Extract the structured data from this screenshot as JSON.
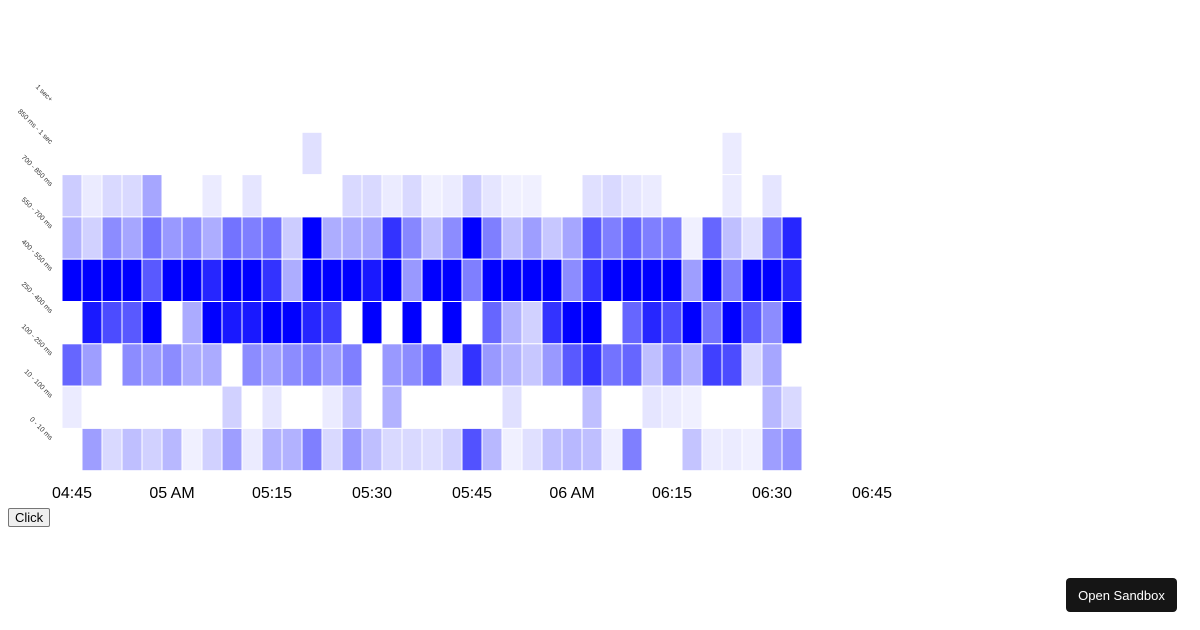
{
  "chart_data": {
    "type": "heatmap",
    "color": "#0000ff",
    "y_categories": [
      "1 sec+",
      "850 ms - 1 sec",
      "700 - 850 ms",
      "550 - 700 ms",
      "400 - 550 ms",
      "250 - 400 ms",
      "100 - 250 ms",
      "10 - 100 ms",
      "0 - 10 ms"
    ],
    "x": [
      "04:45",
      "04:48",
      "04:51",
      "04:54",
      "04:57",
      "05:00",
      "05:03",
      "05:06",
      "05:09",
      "05:12",
      "05:15",
      "05:18",
      "05:21",
      "05:24",
      "05:27",
      "05:30",
      "05:33",
      "05:36",
      "05:39",
      "05:42",
      "05:45",
      "05:48",
      "05:51",
      "05:54",
      "05:57",
      "06:00",
      "06:03",
      "06:06",
      "06:09",
      "06:12",
      "06:15",
      "06:18",
      "06:21",
      "06:24",
      "06:27",
      "06:30",
      "06:33"
    ],
    "x_tick_labels": [
      "04:45",
      "05 AM",
      "05:15",
      "05:30",
      "05:45",
      "06 AM",
      "06:15",
      "06:30",
      "06:45"
    ],
    "x_range": [
      "04:45",
      "06:45"
    ],
    "intensity": [
      [
        null,
        null,
        null,
        null,
        null,
        null,
        null,
        null,
        null,
        null,
        null,
        null,
        null,
        null,
        null,
        null,
        null,
        null,
        null,
        null,
        null,
        null,
        null,
        null,
        null,
        null,
        null,
        null,
        null,
        null,
        null,
        null,
        null,
        null,
        null,
        null,
        null
      ],
      [
        null,
        null,
        null,
        null,
        null,
        null,
        null,
        null,
        null,
        null,
        null,
        null,
        0.12,
        null,
        null,
        null,
        null,
        null,
        null,
        null,
        null,
        null,
        null,
        null,
        null,
        null,
        null,
        null,
        null,
        null,
        null,
        null,
        null,
        0.08,
        null,
        null,
        null
      ],
      [
        0.2,
        0.08,
        0.15,
        0.15,
        0.35,
        null,
        null,
        0.08,
        null,
        0.1,
        null,
        null,
        null,
        null,
        0.15,
        0.15,
        0.08,
        0.15,
        0.06,
        0.08,
        0.2,
        0.1,
        0.06,
        0.06,
        null,
        null,
        0.12,
        0.15,
        0.1,
        0.08,
        null,
        null,
        null,
        0.08,
        null,
        0.1,
        null
      ],
      [
        0.3,
        0.18,
        0.45,
        0.35,
        0.55,
        0.4,
        0.45,
        0.32,
        0.55,
        0.5,
        0.55,
        0.2,
        1,
        0.32,
        0.33,
        0.35,
        0.8,
        0.47,
        0.25,
        0.45,
        1,
        0.5,
        0.25,
        0.38,
        0.22,
        0.35,
        0.65,
        0.5,
        0.6,
        0.5,
        0.5,
        0.06,
        0.6,
        0.25,
        0.12,
        0.55,
        0.85
      ],
      [
        1,
        1,
        1,
        1,
        0.65,
        1,
        1,
        0.85,
        1,
        1,
        0.8,
        0.32,
        1,
        1,
        1,
        0.9,
        1,
        0.4,
        1,
        1,
        0.5,
        1,
        1,
        1,
        1,
        0.45,
        0.8,
        1,
        1,
        1,
        1,
        0.38,
        1,
        0.5,
        1,
        1,
        0.85
      ],
      [
        null,
        0.9,
        0.7,
        0.65,
        1,
        null,
        0.33,
        1,
        0.9,
        0.9,
        1,
        1,
        0.85,
        0.75,
        null,
        1,
        null,
        1,
        null,
        1,
        null,
        0.6,
        0.3,
        0.18,
        0.8,
        1,
        1,
        null,
        0.6,
        0.85,
        0.7,
        1,
        0.55,
        1,
        0.65,
        0.45,
        1
      ],
      [
        0.6,
        0.38,
        null,
        0.45,
        0.4,
        0.45,
        0.33,
        0.33,
        null,
        0.45,
        0.38,
        0.45,
        0.5,
        0.4,
        0.5,
        null,
        0.4,
        0.45,
        0.6,
        0.15,
        0.8,
        0.4,
        0.3,
        0.22,
        0.4,
        0.65,
        0.8,
        0.55,
        0.6,
        0.25,
        0.5,
        0.3,
        0.75,
        0.7,
        0.15,
        0.35,
        null
      ],
      [
        0.08,
        null,
        null,
        null,
        null,
        null,
        null,
        null,
        0.18,
        null,
        0.1,
        null,
        null,
        0.08,
        0.22,
        null,
        0.3,
        null,
        null,
        null,
        null,
        null,
        0.12,
        null,
        null,
        null,
        0.25,
        null,
        null,
        0.1,
        0.08,
        0.06,
        null,
        null,
        null,
        0.28,
        0.15
      ],
      [
        null,
        0.38,
        0.15,
        0.25,
        0.18,
        0.28,
        0.06,
        0.18,
        0.38,
        0.08,
        0.3,
        0.3,
        0.5,
        0.15,
        0.4,
        0.25,
        0.15,
        0.15,
        0.13,
        0.18,
        0.68,
        0.28,
        0.06,
        0.12,
        0.25,
        0.28,
        0.25,
        0.06,
        0.5,
        null,
        null,
        0.23,
        0.08,
        0.08,
        0.06,
        0.38,
        0.43
      ]
    ],
    "grid": false,
    "legend": "none"
  },
  "controls": {
    "click_label": "Click",
    "sandbox_label": "Open Sandbox"
  }
}
